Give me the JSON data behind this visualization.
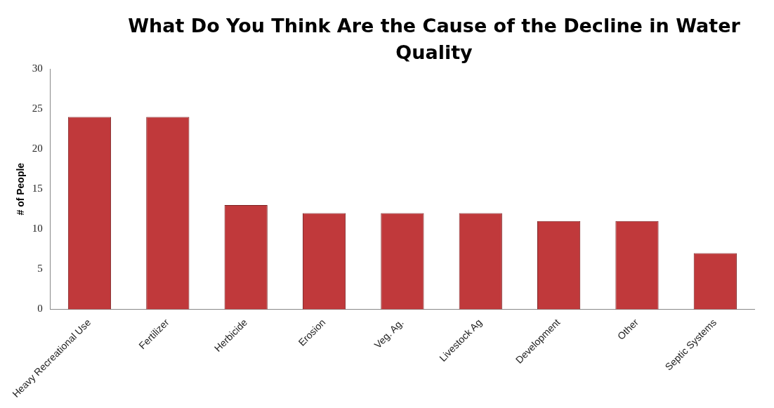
{
  "chart_data": {
    "type": "bar",
    "title": "What Do You Think Are the Cause of the Decline in Water Quality",
    "ylabel": "# of People",
    "categories": [
      "Heavy Recreational Use",
      "Fertilizer",
      "Herbicide",
      "Erosion",
      "Veg. Ag.",
      "Livestock Ag",
      "Development",
      "Other",
      "Septic Systems"
    ],
    "values": [
      24,
      24,
      13,
      12,
      12,
      12,
      11,
      11,
      7
    ],
    "color": "#c0393b",
    "ylim": [
      0,
      30
    ],
    "yticks": [
      0,
      5,
      10,
      15,
      20,
      25,
      30
    ],
    "grid": false,
    "legend": false
  }
}
